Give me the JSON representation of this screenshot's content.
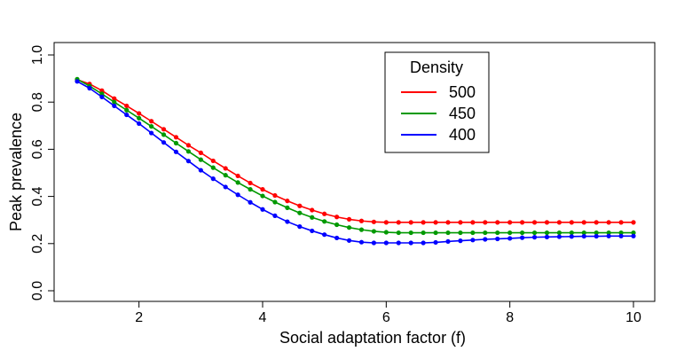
{
  "chart_data": {
    "type": "line",
    "title": "",
    "xlabel": "Social adaptation factor (f)",
    "ylabel": "Peak prevalence",
    "xlim": [
      1,
      10
    ],
    "ylim": [
      0,
      1
    ],
    "xticks": [
      "2",
      "4",
      "6",
      "8",
      "10"
    ],
    "yticks": [
      "0.0",
      "0.2",
      "0.4",
      "0.6",
      "0.8",
      "1.0"
    ],
    "legend": {
      "title": "Density",
      "position": "top-center"
    },
    "x": [
      1.0,
      1.2,
      1.4,
      1.6,
      1.8,
      2.0,
      2.2,
      2.4,
      2.6,
      2.8,
      3.0,
      3.2,
      3.4,
      3.6,
      3.8,
      4.0,
      4.2,
      4.4,
      4.6,
      4.8,
      5.0,
      5.2,
      5.4,
      5.6,
      5.8,
      6.0,
      6.2,
      6.4,
      6.6,
      6.8,
      7.0,
      7.2,
      7.4,
      7.6,
      7.8,
      8.0,
      8.2,
      8.4,
      8.6,
      8.8,
      9.0,
      9.2,
      9.4,
      9.6,
      9.8,
      10.0
    ],
    "series": [
      {
        "name": "500",
        "color": "#ff0000",
        "values": [
          0.895,
          0.877,
          0.849,
          0.815,
          0.784,
          0.752,
          0.719,
          0.685,
          0.651,
          0.617,
          0.585,
          0.551,
          0.519,
          0.487,
          0.457,
          0.43,
          0.404,
          0.381,
          0.36,
          0.342,
          0.326,
          0.313,
          0.303,
          0.296,
          0.292,
          0.29,
          0.29,
          0.29,
          0.29,
          0.29,
          0.29,
          0.29,
          0.29,
          0.29,
          0.29,
          0.29,
          0.29,
          0.29,
          0.29,
          0.29,
          0.29,
          0.29,
          0.29,
          0.29,
          0.29,
          0.29
        ]
      },
      {
        "name": "450",
        "color": "#009900",
        "values": [
          0.897,
          0.868,
          0.835,
          0.8,
          0.766,
          0.732,
          0.697,
          0.662,
          0.626,
          0.591,
          0.556,
          0.522,
          0.49,
          0.459,
          0.43,
          0.402,
          0.376,
          0.352,
          0.33,
          0.311,
          0.294,
          0.28,
          0.268,
          0.259,
          0.252,
          0.248,
          0.246,
          0.246,
          0.246,
          0.246,
          0.246,
          0.246,
          0.246,
          0.246,
          0.246,
          0.246,
          0.246,
          0.246,
          0.246,
          0.246,
          0.246,
          0.246,
          0.246,
          0.246,
          0.246,
          0.246
        ]
      },
      {
        "name": "400",
        "color": "#0000ff",
        "values": [
          0.888,
          0.859,
          0.822,
          0.784,
          0.746,
          0.709,
          0.669,
          0.629,
          0.589,
          0.55,
          0.511,
          0.475,
          0.44,
          0.407,
          0.375,
          0.345,
          0.318,
          0.293,
          0.272,
          0.254,
          0.238,
          0.224,
          0.213,
          0.206,
          0.203,
          0.203,
          0.203,
          0.203,
          0.203,
          0.205,
          0.209,
          0.212,
          0.215,
          0.218,
          0.22,
          0.222,
          0.225,
          0.227,
          0.228,
          0.229,
          0.23,
          0.231,
          0.231,
          0.232,
          0.232,
          0.232
        ]
      }
    ]
  }
}
